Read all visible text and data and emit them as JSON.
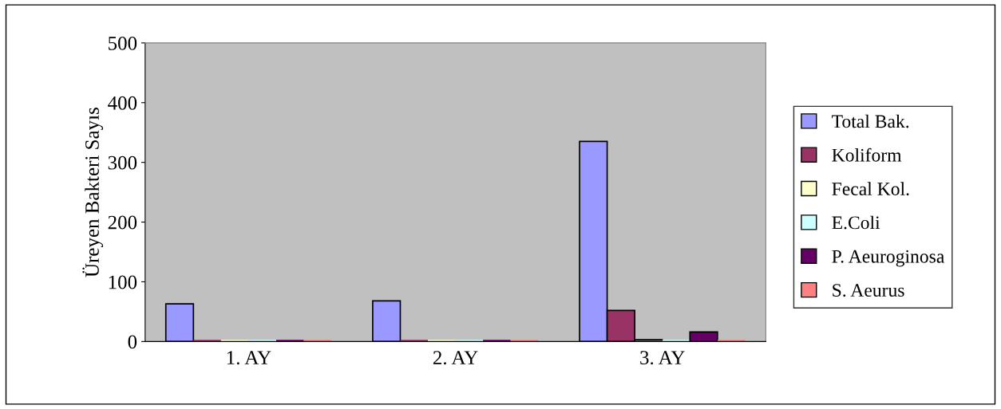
{
  "chart_data": {
    "type": "bar",
    "ylabel": "Üreyen Bakteri Sayıs",
    "categories": [
      "1. AY",
      "2. AY",
      "3. AY"
    ],
    "series": [
      {
        "name": "Total Bak.",
        "color": "#9999ff",
        "values": [
          63,
          68,
          335
        ]
      },
      {
        "name": "Koliform",
        "color": "#993366",
        "values": [
          0,
          0,
          52
        ]
      },
      {
        "name": "Fecal Kol.",
        "color": "#ffffcc",
        "values": [
          0,
          0,
          3
        ]
      },
      {
        "name": "E.Coli",
        "color": "#ccffff",
        "values": [
          0,
          0,
          0
        ]
      },
      {
        "name": "P. Aeuroginosa",
        "color": "#660066",
        "values": [
          0,
          0,
          16
        ]
      },
      {
        "name": "S. Aeurus",
        "color": "#ff8080",
        "values": [
          0,
          0,
          0
        ]
      }
    ],
    "ylim": [
      0,
      500
    ],
    "yticks": [
      0,
      100,
      200,
      300,
      400,
      500
    ],
    "grid": false,
    "legend": "right"
  }
}
